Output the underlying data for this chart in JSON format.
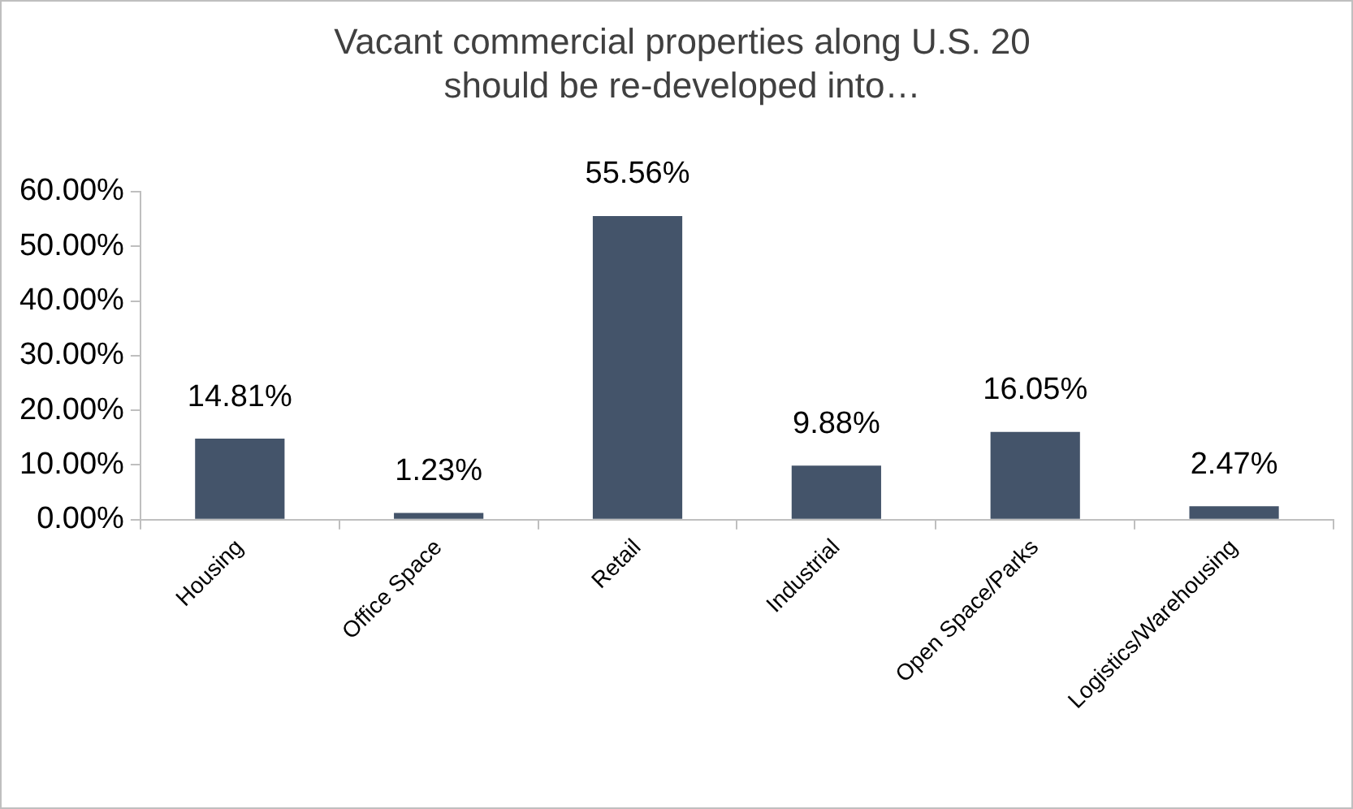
{
  "chart_data": {
    "type": "bar",
    "title": "Vacant commercial properties along U.S. 20 should be re-developed into…",
    "categories": [
      "Housing",
      "Office Space",
      "Retail",
      "Industrial",
      "Open Space/Parks",
      "Logistics/Warehousing"
    ],
    "values": [
      14.81,
      1.23,
      55.56,
      9.88,
      16.05,
      2.47
    ],
    "value_labels": [
      "14.81%",
      "1.23%",
      "55.56%",
      "9.88%",
      "16.05%",
      "2.47%"
    ],
    "color": "#44546a",
    "ylim": [
      0,
      60
    ],
    "yticks": [
      {
        "value": 0,
        "label": "0.00%"
      },
      {
        "value": 10,
        "label": "10.00%"
      },
      {
        "value": 20,
        "label": "20.00%"
      },
      {
        "value": 30,
        "label": "30.00%"
      },
      {
        "value": 40,
        "label": "40.00%"
      },
      {
        "value": 50,
        "label": "50.00%"
      },
      {
        "value": 60,
        "label": "60.00%"
      }
    ],
    "grid": false,
    "legend": false
  }
}
